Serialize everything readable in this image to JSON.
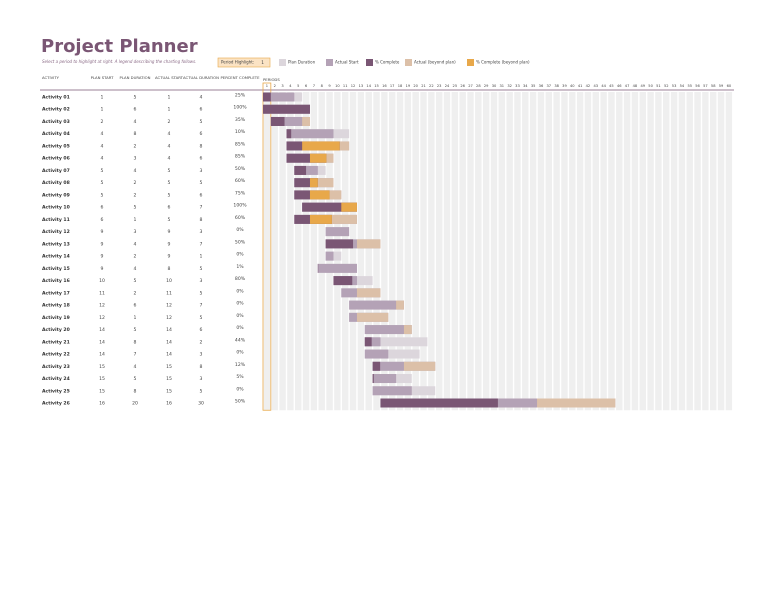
{
  "header": {
    "title": "Project Planner",
    "subtitle": "Select a period to highlight at right.  A legend describing the charting follows.",
    "period_highlight_label": "Period Highlight:",
    "period_highlight": 1
  },
  "legend": [
    {
      "label": "Plan Duration",
      "color": "#dcd6dc"
    },
    {
      "label": "Actual Start",
      "color": "#b4a2b6"
    },
    {
      "label": "% Complete",
      "color": "#7a5674"
    },
    {
      "label": "Actual (beyond plan)",
      "color": "#dcc0a8"
    },
    {
      "label": "% Complete (beyond plan)",
      "color": "#e8a84a"
    }
  ],
  "columns": [
    "ACTIVITY",
    "PLAN START",
    "PLAN DURATION",
    "ACTUAL START",
    "ACTUAL DURATION",
    "PERCENT COMPLETE"
  ],
  "periods_label": "PERIODS",
  "periods": [
    1,
    2,
    3,
    4,
    5,
    6,
    7,
    8,
    9,
    10,
    11,
    12,
    13,
    14,
    15,
    16,
    17,
    18,
    19,
    20,
    21,
    22,
    23,
    24,
    25,
    26,
    27,
    28,
    29,
    30,
    31,
    32,
    33,
    34,
    35,
    36,
    37,
    38,
    39,
    40,
    41,
    42,
    43,
    44,
    45,
    46,
    47,
    48,
    49,
    50,
    51,
    52,
    53,
    54,
    55,
    56,
    57,
    58,
    59,
    60
  ],
  "activities": [
    {
      "name": "Activity 01",
      "plan_start": 1,
      "plan_duration": 5,
      "actual_start": 1,
      "actual_duration": 4,
      "percent_complete": {
        "value": 25,
        "label": "25%"
      }
    },
    {
      "name": "Activity 02",
      "plan_start": 1,
      "plan_duration": 6,
      "actual_start": 1,
      "actual_duration": 6,
      "percent_complete": {
        "value": 100,
        "label": "100%"
      }
    },
    {
      "name": "Activity 03",
      "plan_start": 2,
      "plan_duration": 4,
      "actual_start": 2,
      "actual_duration": 5,
      "percent_complete": {
        "value": 35,
        "label": "35%"
      }
    },
    {
      "name": "Activity 04",
      "plan_start": 4,
      "plan_duration": 8,
      "actual_start": 4,
      "actual_duration": 6,
      "percent_complete": {
        "value": 10,
        "label": "10%"
      }
    },
    {
      "name": "Activity 05",
      "plan_start": 4,
      "plan_duration": 2,
      "actual_start": 4,
      "actual_duration": 8,
      "percent_complete": {
        "value": 85,
        "label": "85%"
      }
    },
    {
      "name": "Activity 06",
      "plan_start": 4,
      "plan_duration": 3,
      "actual_start": 4,
      "actual_duration": 6,
      "percent_complete": {
        "value": 85,
        "label": "85%"
      }
    },
    {
      "name": "Activity 07",
      "plan_start": 5,
      "plan_duration": 4,
      "actual_start": 5,
      "actual_duration": 3,
      "percent_complete": {
        "value": 50,
        "label": "50%"
      }
    },
    {
      "name": "Activity 08",
      "plan_start": 5,
      "plan_duration": 2,
      "actual_start": 5,
      "actual_duration": 5,
      "percent_complete": {
        "value": 60,
        "label": "60%"
      }
    },
    {
      "name": "Activity 09",
      "plan_start": 5,
      "plan_duration": 2,
      "actual_start": 5,
      "actual_duration": 6,
      "percent_complete": {
        "value": 75,
        "label": "75%"
      }
    },
    {
      "name": "Activity 10",
      "plan_start": 6,
      "plan_duration": 5,
      "actual_start": 6,
      "actual_duration": 7,
      "percent_complete": {
        "value": 100,
        "label": "100%"
      }
    },
    {
      "name": "Activity 11",
      "plan_start": 6,
      "plan_duration": 1,
      "actual_start": 5,
      "actual_duration": 8,
      "percent_complete": {
        "value": 60,
        "label": "60%"
      }
    },
    {
      "name": "Activity 12",
      "plan_start": 9,
      "plan_duration": 3,
      "actual_start": 9,
      "actual_duration": 3,
      "percent_complete": {
        "value": 0,
        "label": "0%"
      }
    },
    {
      "name": "Activity 13",
      "plan_start": 9,
      "plan_duration": 4,
      "actual_start": 9,
      "actual_duration": 7,
      "percent_complete": {
        "value": 50,
        "label": "50%"
      }
    },
    {
      "name": "Activity 14",
      "plan_start": 9,
      "plan_duration": 2,
      "actual_start": 9,
      "actual_duration": 1,
      "percent_complete": {
        "value": 0,
        "label": "0%"
      }
    },
    {
      "name": "Activity 15",
      "plan_start": 9,
      "plan_duration": 4,
      "actual_start": 8,
      "actual_duration": 5,
      "percent_complete": {
        "value": 1,
        "label": "1%"
      }
    },
    {
      "name": "Activity 16",
      "plan_start": 10,
      "plan_duration": 5,
      "actual_start": 10,
      "actual_duration": 3,
      "percent_complete": {
        "value": 80,
        "label": "80%"
      }
    },
    {
      "name": "Activity 17",
      "plan_start": 11,
      "plan_duration": 2,
      "actual_start": 11,
      "actual_duration": 5,
      "percent_complete": {
        "value": 0,
        "label": "0%"
      }
    },
    {
      "name": "Activity 18",
      "plan_start": 12,
      "plan_duration": 6,
      "actual_start": 12,
      "actual_duration": 7,
      "percent_complete": {
        "value": 0,
        "label": "0%"
      }
    },
    {
      "name": "Activity 19",
      "plan_start": 12,
      "plan_duration": 1,
      "actual_start": 12,
      "actual_duration": 5,
      "percent_complete": {
        "value": 0,
        "label": "0%"
      }
    },
    {
      "name": "Activity 20",
      "plan_start": 14,
      "plan_duration": 5,
      "actual_start": 14,
      "actual_duration": 6,
      "percent_complete": {
        "value": 0,
        "label": "0%"
      }
    },
    {
      "name": "Activity 21",
      "plan_start": 14,
      "plan_duration": 8,
      "actual_start": 14,
      "actual_duration": 2,
      "percent_complete": {
        "value": 44,
        "label": "44%"
      }
    },
    {
      "name": "Activity 22",
      "plan_start": 14,
      "plan_duration": 7,
      "actual_start": 14,
      "actual_duration": 3,
      "percent_complete": {
        "value": 0,
        "label": "0%"
      }
    },
    {
      "name": "Activity 23",
      "plan_start": 15,
      "plan_duration": 4,
      "actual_start": 15,
      "actual_duration": 8,
      "percent_complete": {
        "value": 12,
        "label": "12%"
      }
    },
    {
      "name": "Activity 24",
      "plan_start": 15,
      "plan_duration": 5,
      "actual_start": 15,
      "actual_duration": 3,
      "percent_complete": {
        "value": 5,
        "label": "5%"
      }
    },
    {
      "name": "Activity 25",
      "plan_start": 15,
      "plan_duration": 8,
      "actual_start": 15,
      "actual_duration": 5,
      "percent_complete": {
        "value": 0,
        "label": "0%"
      }
    },
    {
      "name": "Activity 26",
      "plan_start": 16,
      "plan_duration": 20,
      "actual_start": 16,
      "actual_duration": 30,
      "percent_complete": {
        "value": 50,
        "label": "50%"
      }
    }
  ]
}
